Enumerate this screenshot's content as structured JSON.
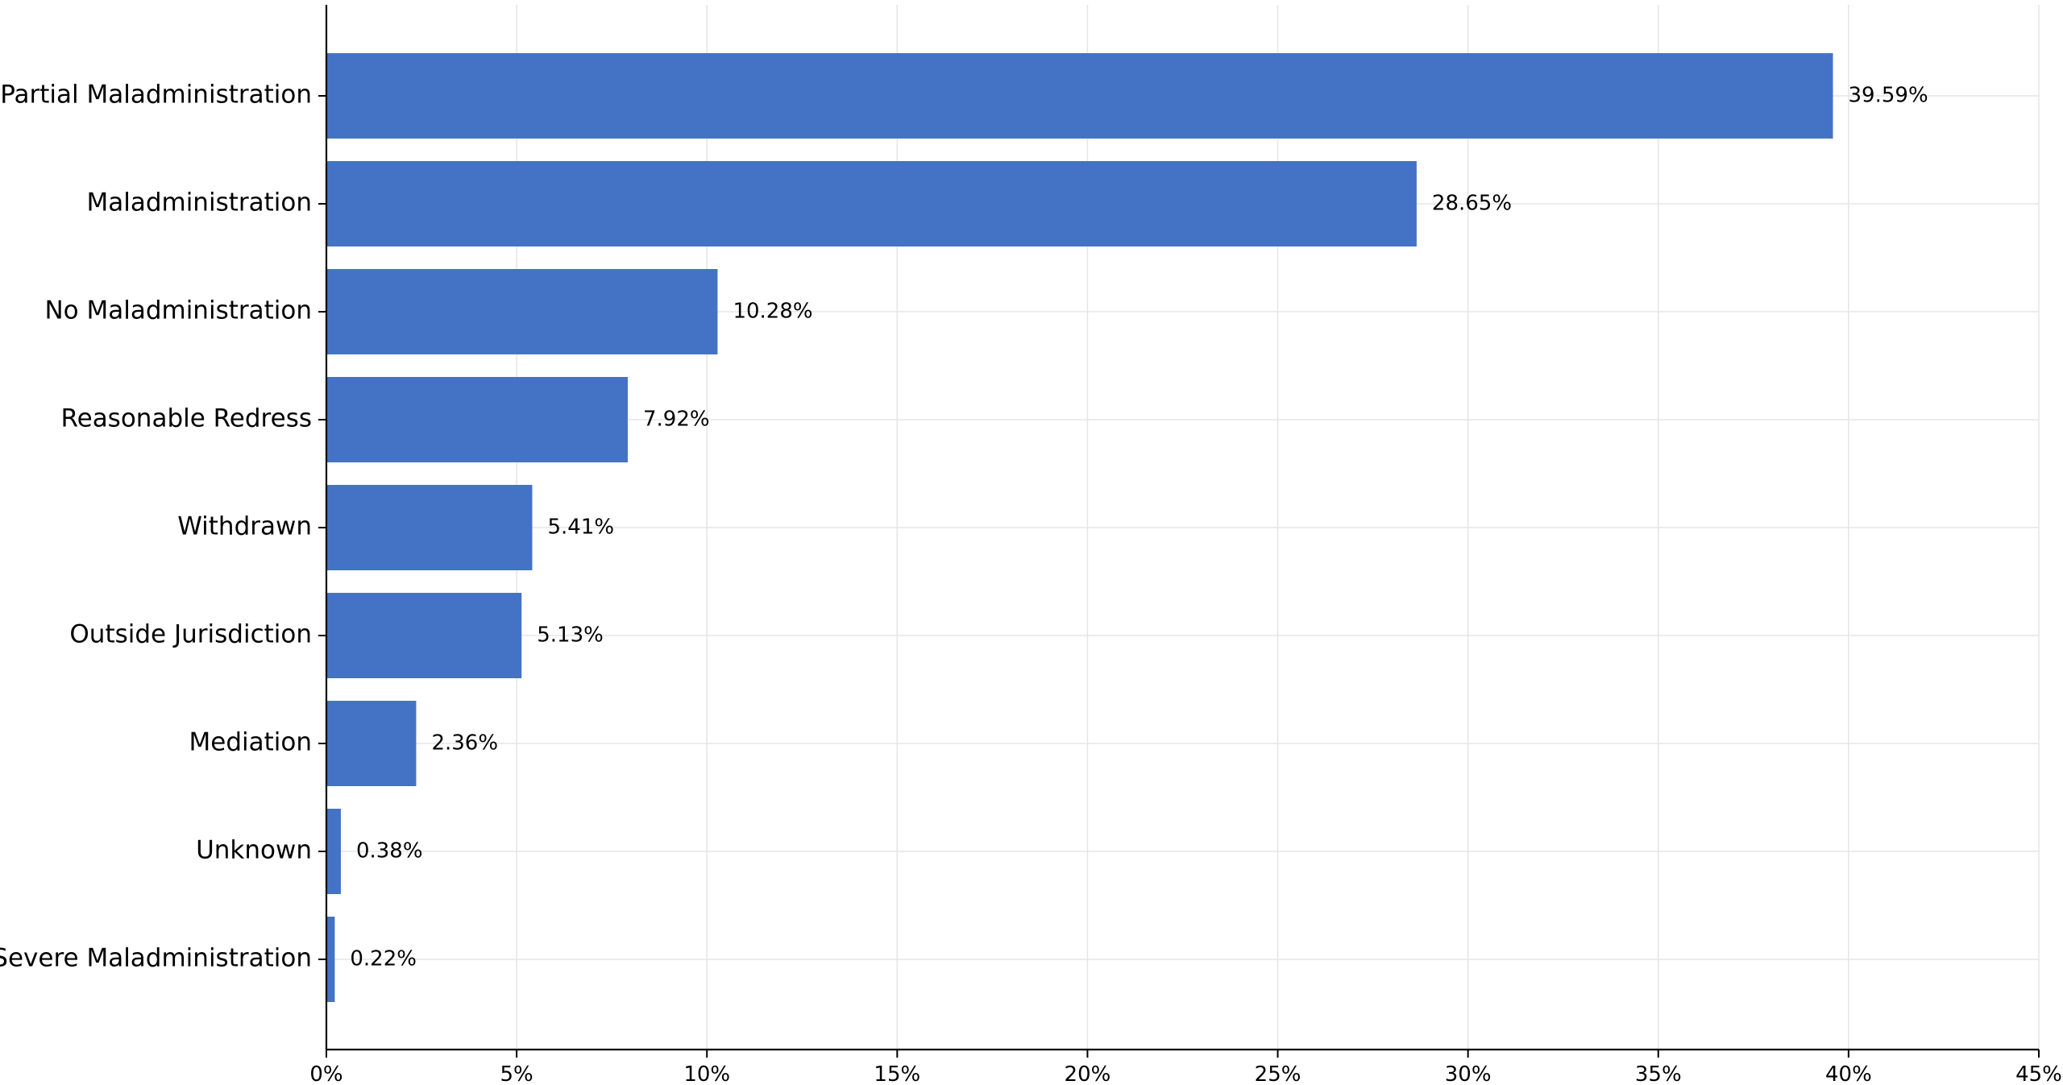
{
  "chart_data": {
    "type": "bar",
    "orientation": "horizontal",
    "title": "",
    "xlabel": "",
    "ylabel": "",
    "categories": [
      "Partial Maladministration",
      "Maladministration",
      "No Maladministration",
      "Reasonable Redress",
      "Withdrawn",
      "Outside Jurisdiction",
      "Mediation",
      "Unknown",
      "Severe Maladministration"
    ],
    "values": [
      39.59,
      28.65,
      10.28,
      7.92,
      5.41,
      5.13,
      2.36,
      0.38,
      0.22
    ],
    "value_labels": [
      "39.59%",
      "28.65%",
      "10.28%",
      "7.92%",
      "5.41%",
      "5.13%",
      "2.36%",
      "0.38%",
      "0.22%"
    ],
    "xlim": [
      0,
      45
    ],
    "xticks": [
      0,
      5,
      10,
      15,
      20,
      25,
      30,
      35,
      40,
      45
    ],
    "xtick_labels": [
      "0%",
      "5%",
      "10%",
      "15%",
      "20%",
      "25%",
      "30%",
      "35%",
      "40%",
      "45%"
    ],
    "grid": true,
    "bar_color": "#4472c4",
    "grid_color": "#e6e6e6"
  }
}
